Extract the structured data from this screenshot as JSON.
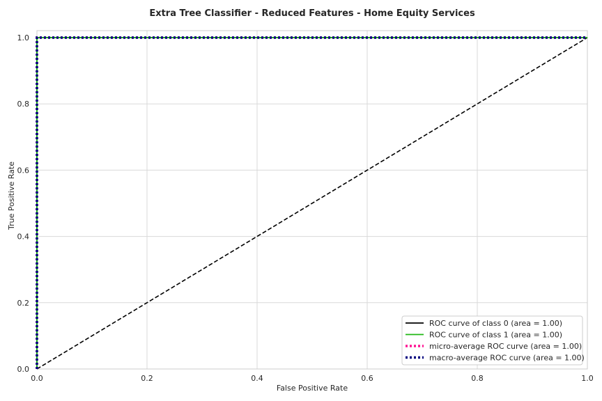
{
  "chart_data": {
    "type": "line",
    "title": "Extra Tree Classifier - Reduced Features - Home Equity Services",
    "xlabel": "False Positive Rate",
    "ylabel": "True Positive Rate",
    "xlim": [
      0,
      1
    ],
    "ylim": [
      0,
      1
    ],
    "xticks": [
      "0.0",
      "0.2",
      "0.4",
      "0.6",
      "0.8",
      "1.0"
    ],
    "yticks": [
      "0.0",
      "0.2",
      "0.4",
      "0.6",
      "0.8",
      "1.0"
    ],
    "grid": true,
    "legend_position": "lower-right",
    "series": [
      {
        "name": "ROC curve of class 0 (area = 1.00)",
        "color": "#000000",
        "style": "solid",
        "x": [
          0,
          0,
          1
        ],
        "y": [
          0,
          1,
          1
        ]
      },
      {
        "name": "ROC curve of class 1 (area = 1.00)",
        "color": "#1fb714",
        "style": "solid",
        "x": [
          0,
          0,
          1
        ],
        "y": [
          0,
          1,
          1
        ]
      },
      {
        "name": "micro-average ROC curve (area = 1.00)",
        "color": "#ff1493",
        "style": "dotted",
        "x": [
          0,
          0,
          1
        ],
        "y": [
          0,
          1,
          1
        ]
      },
      {
        "name": "macro-average ROC curve (area = 1.00)",
        "color": "#000080",
        "style": "dotted",
        "x": [
          0,
          0,
          1
        ],
        "y": [
          0,
          1,
          1
        ]
      }
    ],
    "reference_line": {
      "color": "#000000",
      "style": "dashed",
      "x": [
        0,
        1
      ],
      "y": [
        0,
        1
      ]
    }
  }
}
